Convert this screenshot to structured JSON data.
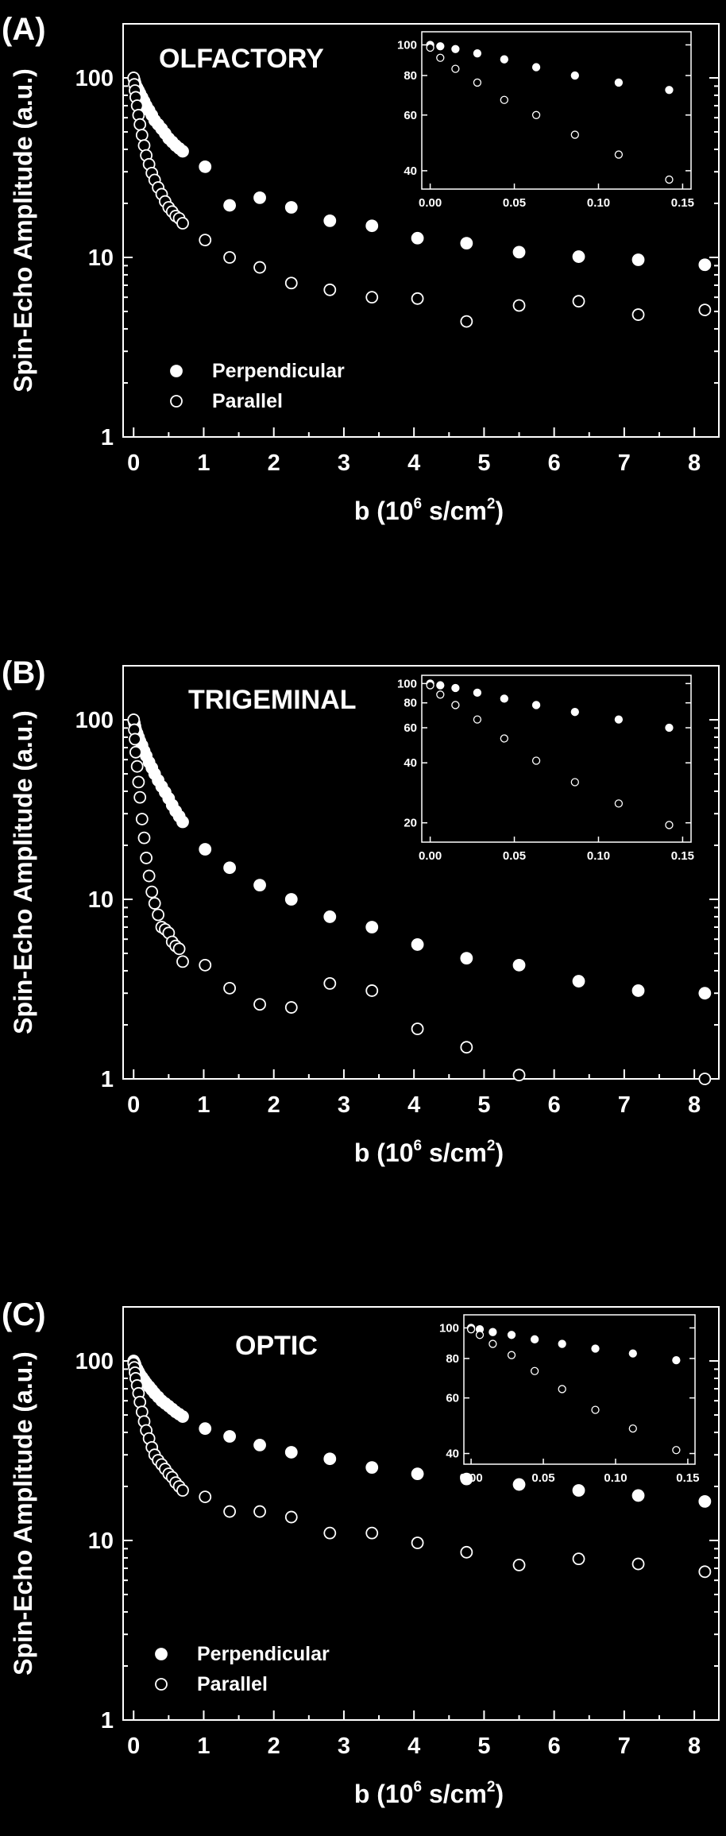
{
  "chart_data": [
    {
      "panel": "(A)",
      "type": "scatter",
      "title": "OLFACTORY",
      "xlabel": "b (10^6 s/cm^2)",
      "ylabel": "Spin-Echo Amplitude (a.u.)",
      "xlim": [
        -0.15,
        8.35
      ],
      "ylim": [
        1,
        200
      ],
      "yscale": "log",
      "xticks": [
        0,
        1,
        2,
        3,
        4,
        5,
        6,
        7,
        8
      ],
      "yticks": [
        1,
        10,
        100
      ],
      "legend": {
        "position": "lower-left",
        "entries": [
          "Perpendicular",
          "Parallel"
        ]
      },
      "series": [
        {
          "name": "Perpendicular",
          "marker": "filled",
          "x": [
            0.0,
            0.01,
            0.02,
            0.03,
            0.05,
            0.07,
            0.09,
            0.12,
            0.15,
            0.18,
            0.22,
            0.26,
            0.3,
            0.35,
            0.4,
            0.45,
            0.5,
            0.55,
            0.6,
            0.65,
            0.7,
            1.02,
            1.37,
            1.8,
            2.25,
            2.8,
            3.4,
            4.05,
            4.75,
            5.5,
            6.35,
            7.2,
            8.15
          ],
          "y": [
            100,
            97,
            94,
            91,
            88,
            85,
            82,
            78,
            74,
            70,
            66,
            62,
            58,
            55,
            52,
            49,
            46,
            44,
            42,
            40.5,
            39,
            32,
            19.5,
            21.5,
            19,
            16,
            15,
            12.8,
            12,
            10.7,
            10.1,
            9.7,
            9.1
          ]
        },
        {
          "name": "Parallel",
          "marker": "open",
          "x": [
            0.0,
            0.01,
            0.02,
            0.03,
            0.05,
            0.07,
            0.09,
            0.12,
            0.15,
            0.18,
            0.22,
            0.26,
            0.3,
            0.35,
            0.4,
            0.45,
            0.5,
            0.55,
            0.6,
            0.65,
            0.7,
            1.02,
            1.37,
            1.8,
            2.25,
            2.8,
            3.4,
            4.05,
            4.75,
            5.5,
            6.35,
            7.2,
            8.15
          ],
          "y": [
            100,
            92,
            85,
            78,
            70,
            62,
            55,
            48,
            42,
            37,
            33,
            29.5,
            27,
            24.5,
            22.5,
            20.5,
            19,
            18,
            17,
            16.5,
            15.5,
            12.5,
            10,
            8.8,
            7.2,
            6.6,
            6,
            5.9,
            4.4,
            5.4,
            5.7,
            4.8,
            5.1
          ]
        }
      ],
      "inset": {
        "xlim": [
          -0.005,
          0.155
        ],
        "ylim": [
          35,
          110
        ],
        "yscale": "log",
        "xticks": [
          "0.00",
          "0.05",
          "0.10",
          "0.15"
        ],
        "yticks": [
          40,
          60,
          80,
          100
        ],
        "series": [
          {
            "name": "Perpendicular",
            "marker": "filled",
            "x": [
              0.0,
              0.006,
              0.015,
              0.028,
              0.044,
              0.063,
              0.086,
              0.112,
              0.142
            ],
            "y": [
              100,
              99,
              97,
              94,
              90,
              85,
              80,
              76,
              72
            ]
          },
          {
            "name": "Parallel",
            "marker": "open",
            "x": [
              0.0,
              0.006,
              0.015,
              0.028,
              0.044,
              0.063,
              0.086,
              0.112,
              0.142
            ],
            "y": [
              98,
              91,
              84,
              76,
              67,
              60,
              52,
              45,
              37.5
            ]
          }
        ]
      }
    },
    {
      "panel": "(B)",
      "type": "scatter",
      "title": "TRIGEMINAL",
      "xlabel": "b (10^6 s/cm^2)",
      "ylabel": "Spin-Echo Amplitude (a.u.)",
      "xlim": [
        -0.15,
        8.35
      ],
      "ylim": [
        1,
        200
      ],
      "yscale": "log",
      "xticks": [
        0,
        1,
        2,
        3,
        4,
        5,
        6,
        7,
        8
      ],
      "yticks": [
        1,
        10,
        100
      ],
      "series": [
        {
          "name": "Perpendicular",
          "marker": "filled",
          "x": [
            0.0,
            0.01,
            0.02,
            0.03,
            0.05,
            0.07,
            0.09,
            0.12,
            0.15,
            0.18,
            0.22,
            0.26,
            0.3,
            0.35,
            0.4,
            0.45,
            0.5,
            0.55,
            0.6,
            0.65,
            0.7,
            1.02,
            1.37,
            1.8,
            2.25,
            2.8,
            3.4,
            4.05,
            4.75,
            5.5,
            6.35,
            7.2,
            8.15
          ],
          "y": [
            100,
            96,
            92,
            88,
            84,
            80,
            76,
            72,
            67,
            63,
            58,
            54,
            50,
            46,
            42.5,
            39.5,
            36.5,
            33.5,
            31,
            29,
            27,
            19,
            15,
            12,
            10,
            8,
            7,
            5.6,
            4.7,
            4.3,
            3.5,
            3.1,
            3
          ]
        },
        {
          "name": "Parallel",
          "marker": "open",
          "x": [
            0.0,
            0.01,
            0.02,
            0.03,
            0.05,
            0.07,
            0.09,
            0.12,
            0.15,
            0.18,
            0.22,
            0.26,
            0.3,
            0.35,
            0.4,
            0.45,
            0.5,
            0.55,
            0.6,
            0.65,
            0.7,
            1.02,
            1.37,
            1.8,
            2.25,
            2.8,
            3.4,
            4.05,
            4.75,
            5.5,
            8.15
          ],
          "y": [
            100,
            88,
            78,
            66,
            55,
            45,
            37,
            28,
            22,
            17,
            13.5,
            11,
            9.5,
            8.2,
            7,
            6.8,
            6.5,
            5.8,
            5.5,
            5.3,
            4.5,
            4.3,
            3.2,
            2.6,
            2.5,
            3.4,
            3.1,
            1.9,
            1.5,
            1.05,
            1.0
          ]
        }
      ],
      "inset": {
        "xlim": [
          -0.005,
          0.155
        ],
        "ylim": [
          16,
          110
        ],
        "yscale": "log",
        "xticks": [
          "0.00",
          "0.05",
          "0.10",
          "0.15"
        ],
        "yticks": [
          20,
          40,
          60,
          80,
          100
        ],
        "series": [
          {
            "name": "Perpendicular",
            "marker": "filled",
            "x": [
              0.0,
              0.006,
              0.015,
              0.028,
              0.044,
              0.063,
              0.086,
              0.112,
              0.142
            ],
            "y": [
              100,
              98,
              95,
              90,
              84,
              78,
              72,
              66,
              60
            ]
          },
          {
            "name": "Parallel",
            "marker": "open",
            "x": [
              0.0,
              0.006,
              0.015,
              0.028,
              0.044,
              0.063,
              0.086,
              0.112,
              0.142
            ],
            "y": [
              98,
              88,
              78,
              66,
              53,
              41,
              32,
              25,
              19.5
            ]
          }
        ]
      }
    },
    {
      "panel": "(C)",
      "type": "scatter",
      "title": "OPTIC",
      "xlabel": "b (10^6 s/cm^2)",
      "ylabel": "Spin-Echo Amplitude (a.u.)",
      "xlim": [
        -0.15,
        8.35
      ],
      "ylim": [
        1,
        200
      ],
      "yscale": "log",
      "xticks": [
        0,
        1,
        2,
        3,
        4,
        5,
        6,
        7,
        8
      ],
      "yticks": [
        1,
        10,
        100
      ],
      "legend": {
        "position": "lower-left",
        "entries": [
          "Perpendicular",
          "Parallel"
        ]
      },
      "series": [
        {
          "name": "Perpendicular",
          "marker": "filled",
          "x": [
            0.0,
            0.01,
            0.02,
            0.03,
            0.05,
            0.07,
            0.09,
            0.12,
            0.15,
            0.18,
            0.22,
            0.26,
            0.3,
            0.35,
            0.4,
            0.45,
            0.5,
            0.55,
            0.6,
            0.65,
            0.7,
            1.02,
            1.37,
            1.8,
            2.25,
            2.8,
            3.4,
            4.05,
            4.75,
            5.5,
            6.35,
            7.2,
            8.15
          ],
          "y": [
            100,
            98,
            96,
            93,
            90,
            87,
            84,
            81,
            78,
            75,
            72,
            69,
            66,
            63,
            60,
            58,
            56,
            54,
            52,
            50.5,
            49,
            42,
            38,
            34,
            31,
            28.5,
            25.5,
            23.5,
            22,
            20.5,
            19,
            17.8,
            16.5
          ]
        },
        {
          "name": "Parallel",
          "marker": "open",
          "x": [
            0.0,
            0.01,
            0.02,
            0.03,
            0.05,
            0.07,
            0.09,
            0.12,
            0.15,
            0.18,
            0.22,
            0.26,
            0.3,
            0.35,
            0.4,
            0.45,
            0.5,
            0.55,
            0.6,
            0.65,
            0.7,
            1.02,
            1.37,
            1.8,
            2.25,
            2.8,
            3.4,
            4.05,
            4.75,
            5.5,
            6.35,
            7.2,
            8.15
          ],
          "y": [
            97,
            92,
            86,
            80,
            73,
            66,
            59,
            52,
            46,
            41,
            37,
            33,
            30,
            28,
            26.5,
            25,
            23.5,
            22.5,
            21,
            20,
            19,
            17.5,
            14.5,
            14.5,
            13.5,
            11,
            11,
            9.7,
            8.6,
            7.3,
            7.9,
            7.4,
            6.7
          ]
        }
      ],
      "inset": {
        "xlim": [
          -0.005,
          0.155
        ],
        "ylim": [
          37,
          110
        ],
        "yscale": "log",
        "xticks": [
          "0.00",
          "0.05",
          "0.10",
          "0.15"
        ],
        "yticks": [
          40,
          60,
          80,
          100
        ],
        "series": [
          {
            "name": "Perpendicular",
            "marker": "filled",
            "x": [
              0.0,
              0.006,
              0.015,
              0.028,
              0.044,
              0.063,
              0.086,
              0.112,
              0.142
            ],
            "y": [
              100,
              99,
              97,
              95,
              92,
              89,
              86,
              83,
              79
            ]
          },
          {
            "name": "Parallel",
            "marker": "open",
            "x": [
              0.0,
              0.006,
              0.015,
              0.028,
              0.044,
              0.063,
              0.086,
              0.112,
              0.142
            ],
            "y": [
              99,
              95,
              89,
              82,
              73,
              64,
              55,
              48,
              41
            ]
          }
        ]
      }
    }
  ],
  "colors": {
    "background": "#000000",
    "foreground": "#ffffff"
  }
}
